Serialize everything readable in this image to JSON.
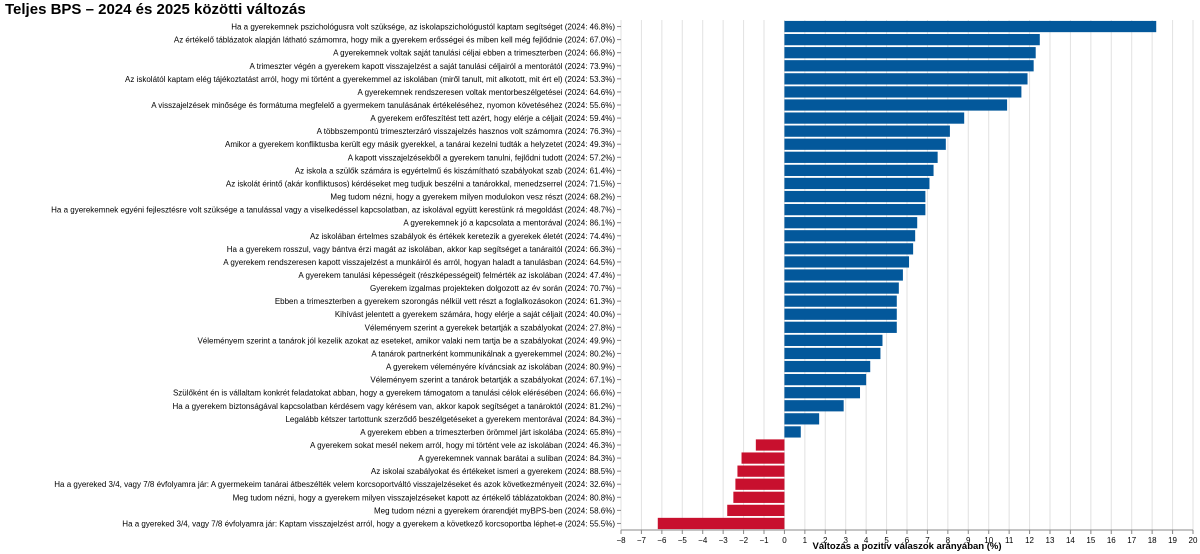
{
  "chart_data": {
    "type": "bar",
    "orientation": "horizontal",
    "title": "Teljes BPS – 2024 és 2025 közötti változás",
    "xlabel": "Változás a pozitív válaszok arányában (%)",
    "ylabel": "",
    "xlim": [
      -8,
      20
    ],
    "xticks": [
      -8,
      -7,
      -6,
      -5,
      -4,
      -3,
      -2,
      -1,
      0,
      1,
      2,
      3,
      4,
      5,
      6,
      7,
      8,
      9,
      10,
      11,
      12,
      13,
      14,
      15,
      16,
      17,
      18,
      19,
      20
    ],
    "grid": true,
    "colors": {
      "positive": "#03589b",
      "negative": "#c8102e"
    },
    "categories": [
      "Ha a gyerekemnek pszichológusra volt szüksége, az iskolapszichológustól kaptam segítséget (2024: 46.8%)",
      "Az értékelő táblázatok alapján látható számomra, hogy mik a gyerekem erősségei és miben kell még fejlődnie (2024: 67.0%)",
      "A gyerekemnek voltak saját tanulási céljai ebben a trimeszterben (2024: 66.8%)",
      "A trimeszter végén a gyerekem kapott visszajelzést a saját tanulási céljairól a mentorától (2024: 73.9%)",
      "Az iskolától kaptam elég tájékoztatást arról, hogy mi történt a gyerekemmel az iskolában (miről tanult, mit alkotott, mit ért el) (2024: 53.3%)",
      "A gyerekemnek rendszeresen voltak mentorbeszélgetései (2024: 64.6%)",
      "A visszajelzések minősége és formátuma megfelelő a gyermekem tanulásának értékeléséhez, nyomon követéséhez (2024: 55.6%)",
      "A gyerekem erőfeszítést tett azért, hogy elérje a céljait (2024: 59.4%)",
      "A többszempontú trimeszterzáró visszajelzés hasznos volt számomra (2024: 76.3%)",
      "Amikor a gyerekem konfliktusba került egy másik gyerekkel, a tanárai kezelni tudták a helyzetet (2024: 49.3%)",
      "A kapott visszajelzésekből a gyerekem tanulni, fejlődni tudott (2024: 57.2%)",
      "Az iskola a szülők számára is egyértelmű és kiszámítható szabályokat szab (2024: 61.4%)",
      "Az iskolát érintő (akár konfliktusos) kérdéseket meg tudjuk beszélni a tanárokkal, menedzserrel (2024: 71.5%)",
      "Meg tudom nézni, hogy a gyerekem milyen modulokon vesz részt (2024: 68.2%)",
      "Ha a gyerekemnek egyéni fejlesztésre volt szüksége a tanulással vagy a viselkedéssel kapcsolatban, az iskolával együtt kerestünk rá megoldást (2024: 48.7%)",
      "A gyerekemnek jó a kapcsolata a mentorával (2024: 86.1%)",
      "Az iskolában értelmes szabályok és értékek keretezik a gyerekek életét (2024: 74.4%)",
      "Ha a gyerekem rosszul, vagy bántva érzi magát az iskolában, akkor kap segítséget a tanáraitól (2024: 66.3%)",
      "A gyerekem rendszeresen kapott visszajelzést a munkáiról és arról, hogyan haladt a tanulásban (2024: 64.5%)",
      "A gyerekem tanulási képességeit (részképességeit) felmérték az iskolában (2024: 47.4%)",
      "Gyerekem izgalmas projekteken dolgozott az év során (2024: 70.7%)",
      "Ebben a trimeszterben a gyerekem szorongás nélkül vett részt a foglalkozásokon (2024: 61.3%)",
      "Kihívást jelentett a gyerekem számára, hogy elérje a saját céljait (2024: 40.0%)",
      "Véleményem szerint a gyerekek betartják a szabályokat (2024: 27.8%)",
      "Véleményem szerint a tanárok jól kezelik azokat az eseteket, amikor valaki nem tartja be a szabályokat (2024: 49.9%)",
      "A tanárok partnerként kommunikálnak a gyerekemmel (2024: 80.2%)",
      "A gyerekem véleményére kíváncsiak az iskolában (2024: 80.9%)",
      "Véleményem szerint a tanárok betartják a szabályokat (2024: 67.1%)",
      "Szülőként én is vállaltam konkrét feladatokat abban, hogy a gyerekem támogatom a tanulási célok elérésében (2024: 66.6%)",
      "Ha a gyerekem biztonságával kapcsolatban kérdésem vagy kérésem van, akkor kapok segítséget a tanároktól (2024: 81.2%)",
      "Legalább kétszer tartottunk szerződő beszélgetéseket a gyerekem mentorával (2024: 84.3%)",
      "A gyerekem ebben a trimeszterben örömmel járt iskolába (2024: 65.8%)",
      "A gyerekem sokat mesél nekem arról, hogy mi történt vele az iskolában (2024: 46.3%)",
      "A gyerekemnek vannak barátai a suliban (2024: 84.3%)",
      "Az iskolai szabályokat és értékeket ismeri a gyerekem (2024: 88.5%)",
      "Ha a gyereked 3/4, vagy 7/8 évfolyamra jár: A gyermekeim tanárai átbeszélték velem korcsoportváltó visszajelzéseket és azok következményeit (2024: 32.6%)",
      "Meg tudom nézni, hogy a gyerekem milyen visszajelzéseket kapott az értékelő táblázatokban (2024: 80.8%)",
      "Meg tudom nézni a gyerekem órarendjét myBPS-ben (2024: 58.6%)",
      "Ha a gyereked 3/4, vagy 7/8 évfolyamra jár: Kaptam visszajelzést arról, hogy a gyerekem a következő korcsoportba léphet-e (2024: 55.5%)"
    ],
    "values": [
      18.2,
      12.5,
      12.3,
      12.2,
      11.9,
      11.6,
      10.9,
      8.8,
      8.1,
      7.9,
      7.5,
      7.3,
      7.1,
      6.9,
      6.9,
      6.5,
      6.4,
      6.3,
      6.1,
      5.8,
      5.6,
      5.5,
      5.5,
      5.5,
      4.8,
      4.7,
      4.2,
      4.0,
      3.7,
      2.9,
      1.7,
      0.8,
      -1.4,
      -2.1,
      -2.3,
      -2.4,
      -2.5,
      -2.8,
      -6.2
    ]
  }
}
